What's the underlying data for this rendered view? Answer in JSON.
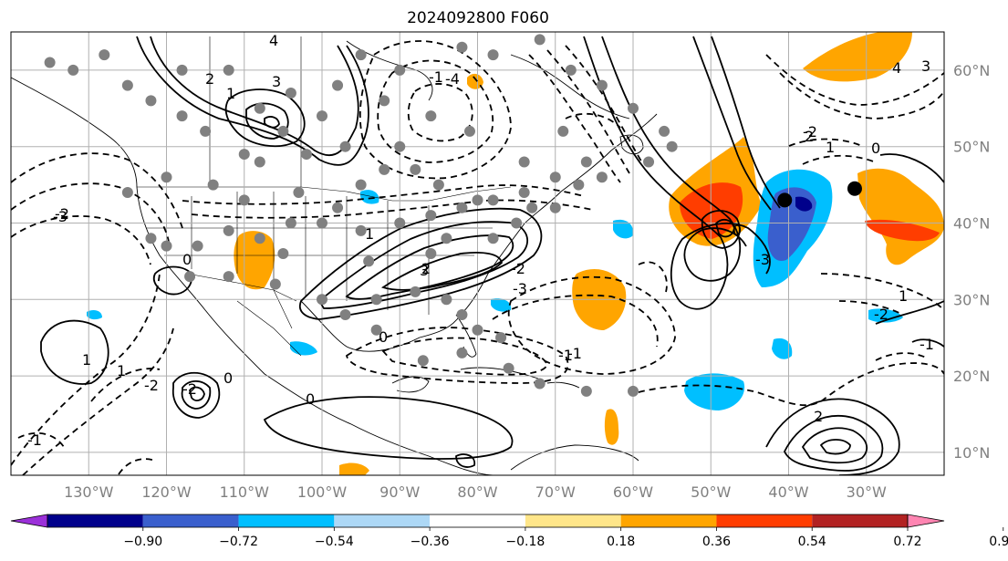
{
  "title": "2024092800 F060",
  "projection": "equirectangular",
  "map_extent": {
    "lon_west": -140,
    "lon_east": -20,
    "lat_south": 7,
    "lat_north": 65
  },
  "gridlines": {
    "lons": [
      -130,
      -120,
      -110,
      -100,
      -90,
      -80,
      -70,
      -60,
      -50,
      -40,
      -30
    ],
    "lats": [
      10,
      20,
      30,
      40,
      50,
      60
    ]
  },
  "lon_labels": [
    "130°W",
    "120°W",
    "110°W",
    "100°W",
    "90°W",
    "80°W",
    "70°W",
    "60°W",
    "50°W",
    "40°W",
    "30°W"
  ],
  "lat_labels": [
    "10°N",
    "20°N",
    "30°N",
    "40°N",
    "50°N",
    "60°N"
  ],
  "colorbar": {
    "ticks": [
      "−0.90",
      "−0.72",
      "−0.54",
      "−0.36",
      "−0.18",
      "0.18",
      "0.36",
      "0.54",
      "0.72",
      "0.90"
    ],
    "colors": [
      "#9b30d9",
      "#00008b",
      "#3a5fcd",
      "#00bfff",
      "#add8f6",
      "#ffffff",
      "#ffe68a",
      "#ffa500",
      "#ff3d00",
      "#b22222",
      "#ff85b2"
    ],
    "extend": "both"
  },
  "contour_labels": [
    "4",
    "1",
    "2",
    "3",
    "-1",
    "0",
    "-2",
    "-3",
    "-4",
    "2",
    "1",
    "0",
    "-1",
    "-2",
    "-3",
    "3",
    "0",
    "1",
    "2",
    "-1",
    "-2",
    "3",
    "4",
    "1",
    "-3",
    "-2",
    "1",
    "0",
    "-1",
    "1",
    "-2",
    "2",
    "0",
    "-1",
    "-2",
    "0"
  ],
  "markers": {
    "grey_color": "#808080",
    "black_color": "#000000"
  }
}
